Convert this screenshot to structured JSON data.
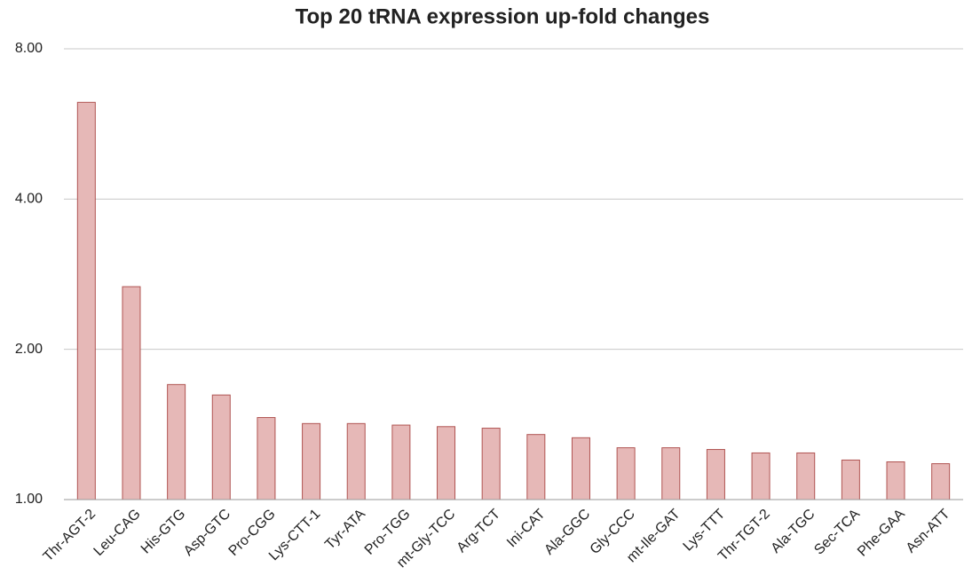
{
  "chart_data": {
    "type": "bar",
    "title": "Top 20 tRNA expression up-fold changes",
    "categories": [
      "Thr-AGT-2",
      "Leu-CAG",
      "His-GTG",
      "Asp-GTC",
      "Pro-CGG",
      "Lys-CTT-1",
      "Tyr-ATA",
      "Pro-TGG",
      "mt-Gly-TCC",
      "Arg-TCT",
      "Ini-CAT",
      "Ala-GGC",
      "Gly-CCC",
      "mt-Ile-GAT",
      "Lys-TTT",
      "Thr-TGT-2",
      "Ala-TGC",
      "Sec-TCA",
      "Phe-GAA",
      "Asn-ATT"
    ],
    "values": [
      6.25,
      2.67,
      1.7,
      1.62,
      1.46,
      1.42,
      1.42,
      1.41,
      1.4,
      1.39,
      1.35,
      1.33,
      1.27,
      1.27,
      1.26,
      1.24,
      1.24,
      1.2,
      1.19,
      1.18
    ],
    "color": "#e6b8b7",
    "edge_color": "#b05452",
    "yscale": "log",
    "ylim": [
      1,
      8
    ],
    "yticks": [
      {
        "value": 1,
        "label": "1.00"
      },
      {
        "value": 2,
        "label": "2.00"
      },
      {
        "value": 4,
        "label": "4.00"
      },
      {
        "value": 8,
        "label": "8.00"
      }
    ],
    "grid": true
  }
}
